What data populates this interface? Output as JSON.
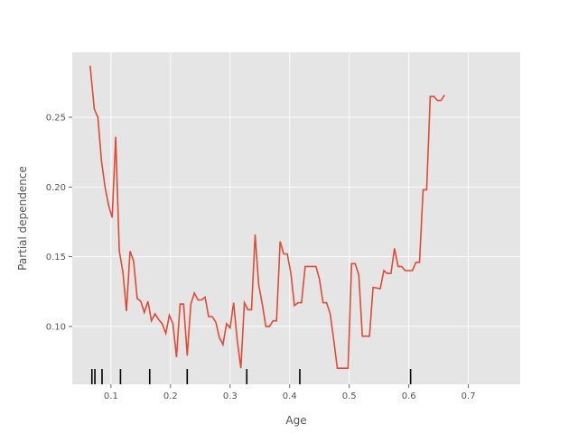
{
  "chart_data": {
    "type": "line",
    "title": "",
    "xlabel": "Age",
    "ylabel": "Partial dependence",
    "xlim": [
      0.035,
      0.787
    ],
    "ylim": [
      0.0585,
      0.2966
    ],
    "grid": true,
    "background": "#e5e5e5",
    "grid_color": "#ffffff",
    "line_color": "#e24a33",
    "rug_color": "#000000",
    "x_ticks": [
      {
        "value": 0.1,
        "label": "0.1"
      },
      {
        "value": 0.2,
        "label": "0.2"
      },
      {
        "value": 0.3,
        "label": "0.3"
      },
      {
        "value": 0.4,
        "label": "0.4"
      },
      {
        "value": 0.5,
        "label": "0.5"
      },
      {
        "value": 0.6,
        "label": "0.6"
      },
      {
        "value": 0.7,
        "label": "0.7"
      }
    ],
    "y_ticks": [
      {
        "value": 0.1,
        "label": "0.10"
      },
      {
        "value": 0.15,
        "label": "0.15"
      },
      {
        "value": 0.2,
        "label": "0.20"
      },
      {
        "value": 0.25,
        "label": "0.25"
      }
    ],
    "rug_deciles": [
      0.068,
      0.073,
      0.085,
      0.116,
      0.165,
      0.228,
      0.328,
      0.417,
      0.603
    ],
    "series": [
      {
        "values": [
          [
            0.065,
            0.287
          ],
          [
            0.072,
            0.256
          ],
          [
            0.078,
            0.25
          ],
          [
            0.084,
            0.219
          ],
          [
            0.09,
            0.2
          ],
          [
            0.096,
            0.187
          ],
          [
            0.102,
            0.178
          ],
          [
            0.108,
            0.236
          ],
          [
            0.114,
            0.154
          ],
          [
            0.12,
            0.139
          ],
          [
            0.126,
            0.111
          ],
          [
            0.132,
            0.154
          ],
          [
            0.138,
            0.147
          ],
          [
            0.144,
            0.12
          ],
          [
            0.15,
            0.118
          ],
          [
            0.156,
            0.11
          ],
          [
            0.162,
            0.118
          ],
          [
            0.168,
            0.104
          ],
          [
            0.174,
            0.109
          ],
          [
            0.18,
            0.105
          ],
          [
            0.186,
            0.102
          ],
          [
            0.192,
            0.095
          ],
          [
            0.198,
            0.108
          ],
          [
            0.204,
            0.102
          ],
          [
            0.21,
            0.078
          ],
          [
            0.216,
            0.116
          ],
          [
            0.222,
            0.116
          ],
          [
            0.228,
            0.079
          ],
          [
            0.234,
            0.116
          ],
          [
            0.24,
            0.124
          ],
          [
            0.246,
            0.119
          ],
          [
            0.252,
            0.119
          ],
          [
            0.258,
            0.121
          ],
          [
            0.264,
            0.107
          ],
          [
            0.27,
            0.107
          ],
          [
            0.276,
            0.103
          ],
          [
            0.282,
            0.092
          ],
          [
            0.288,
            0.087
          ],
          [
            0.294,
            0.102
          ],
          [
            0.3,
            0.099
          ],
          [
            0.306,
            0.117
          ],
          [
            0.312,
            0.09
          ],
          [
            0.318,
            0.07
          ],
          [
            0.324,
            0.117
          ],
          [
            0.33,
            0.112
          ],
          [
            0.336,
            0.112
          ],
          [
            0.342,
            0.166
          ],
          [
            0.348,
            0.13
          ],
          [
            0.354,
            0.116
          ],
          [
            0.36,
            0.1
          ],
          [
            0.366,
            0.1
          ],
          [
            0.372,
            0.104
          ],
          [
            0.378,
            0.104
          ],
          [
            0.384,
            0.161
          ],
          [
            0.39,
            0.152
          ],
          [
            0.396,
            0.152
          ],
          [
            0.402,
            0.138
          ],
          [
            0.408,
            0.115
          ],
          [
            0.414,
            0.117
          ],
          [
            0.42,
            0.117
          ],
          [
            0.426,
            0.143
          ],
          [
            0.438,
            0.143
          ],
          [
            0.444,
            0.143
          ],
          [
            0.45,
            0.134
          ],
          [
            0.456,
            0.117
          ],
          [
            0.462,
            0.117
          ],
          [
            0.468,
            0.109
          ],
          [
            0.474,
            0.09
          ],
          [
            0.48,
            0.07
          ],
          [
            0.495,
            0.07
          ],
          [
            0.498,
            0.07
          ],
          [
            0.504,
            0.145
          ],
          [
            0.51,
            0.145
          ],
          [
            0.516,
            0.137
          ],
          [
            0.522,
            0.093
          ],
          [
            0.534,
            0.093
          ],
          [
            0.54,
            0.128
          ],
          [
            0.552,
            0.127
          ],
          [
            0.558,
            0.14
          ],
          [
            0.564,
            0.138
          ],
          [
            0.57,
            0.138
          ],
          [
            0.576,
            0.156
          ],
          [
            0.582,
            0.143
          ],
          [
            0.588,
            0.143
          ],
          [
            0.594,
            0.14
          ],
          [
            0.606,
            0.14
          ],
          [
            0.612,
            0.146
          ],
          [
            0.618,
            0.146
          ],
          [
            0.624,
            0.198
          ],
          [
            0.63,
            0.198
          ],
          [
            0.636,
            0.265
          ],
          [
            0.642,
            0.265
          ],
          [
            0.648,
            0.262
          ],
          [
            0.654,
            0.262
          ],
          [
            0.66,
            0.266
          ]
        ]
      }
    ]
  }
}
